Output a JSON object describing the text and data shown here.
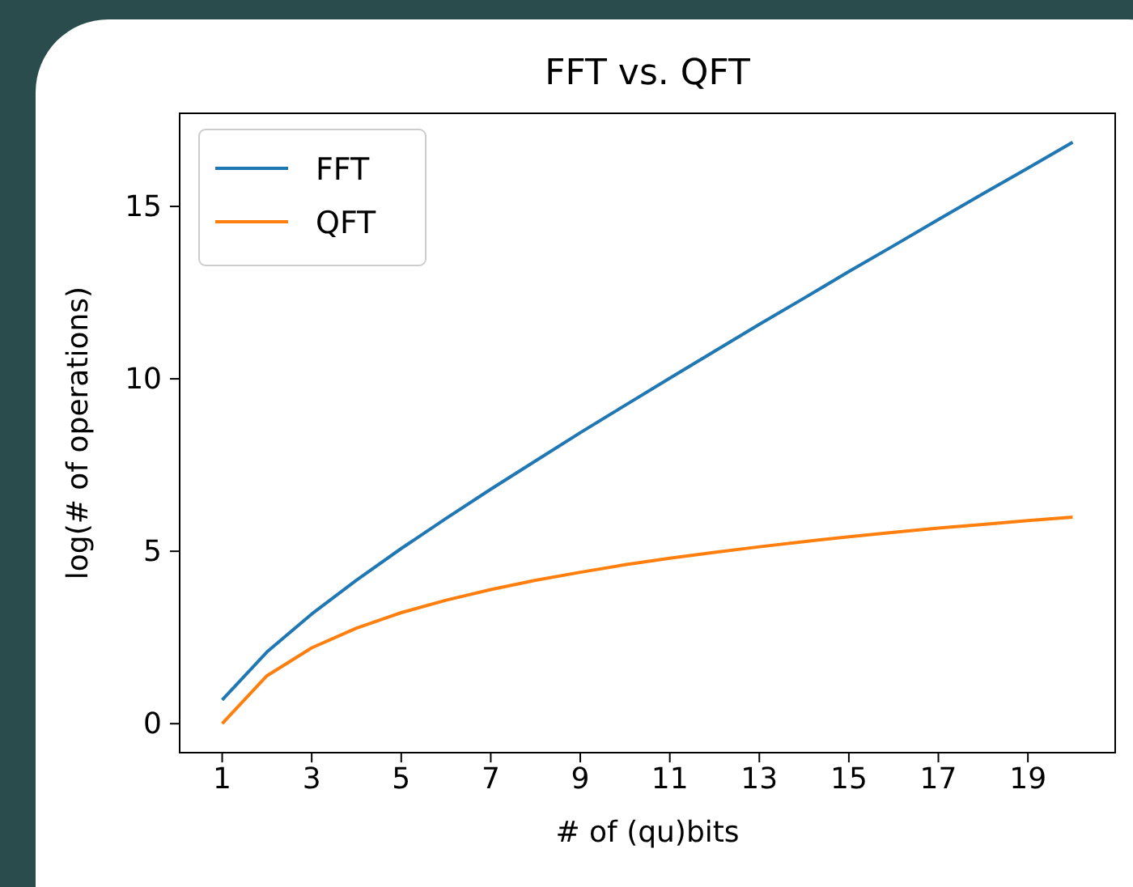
{
  "chart_data": {
    "type": "line",
    "title": "FFT vs. QFT",
    "xlabel": "# of (qu)bits",
    "ylabel": "log(# of operations)",
    "x": [
      1,
      2,
      3,
      4,
      5,
      6,
      7,
      8,
      9,
      10,
      11,
      12,
      13,
      14,
      15,
      16,
      17,
      18,
      19,
      20
    ],
    "series": [
      {
        "name": "FFT",
        "color": "#1f77b4",
        "values": [
          0.69,
          2.08,
          3.18,
          4.16,
          5.08,
          5.95,
          6.8,
          7.62,
          8.44,
          9.23,
          10.02,
          10.8,
          11.58,
          12.34,
          13.11,
          13.86,
          14.62,
          15.37,
          16.11,
          16.86
        ]
      },
      {
        "name": "QFT",
        "color": "#ff7f0e",
        "values": [
          0,
          1.39,
          2.2,
          2.77,
          3.22,
          3.58,
          3.89,
          4.16,
          4.39,
          4.61,
          4.8,
          4.97,
          5.13,
          5.28,
          5.42,
          5.55,
          5.67,
          5.78,
          5.89,
          5.99
        ]
      }
    ],
    "xlim": [
      0.05,
      20.95
    ],
    "ylim": [
      -0.84,
      17.7
    ],
    "xticks": [
      1,
      3,
      5,
      7,
      9,
      11,
      13,
      15,
      17,
      19
    ],
    "yticks": [
      0,
      5,
      10,
      15
    ],
    "legend": "top left",
    "grid": false,
    "marker": "none",
    "line_style": "solid"
  }
}
